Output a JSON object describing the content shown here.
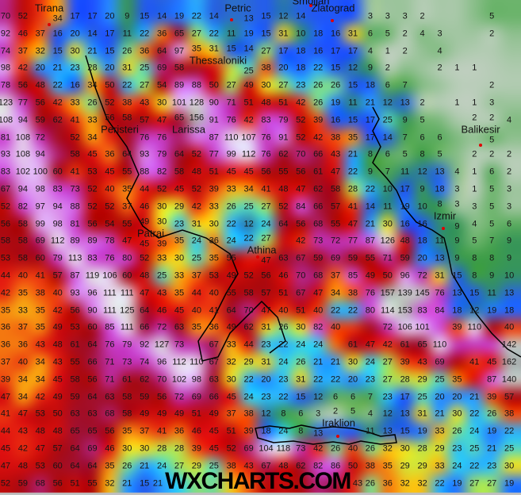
{
  "map": {
    "watermark": "WXCHARTS.COM",
    "cities": [
      {
        "name": "Tirana",
        "has_marker": true
      },
      {
        "name": "Petric",
        "has_marker": true
      },
      {
        "name": "Smoljan",
        "has_marker": true
      },
      {
        "name": "Zlatograd",
        "has_marker": true
      },
      {
        "name": "Thessaloniki",
        "has_marker": false
      },
      {
        "name": "Peristeri",
        "has_marker": false
      },
      {
        "name": "Larissa",
        "has_marker": false
      },
      {
        "name": "Patrai",
        "has_marker": false
      },
      {
        "name": "Athina",
        "has_marker": true
      },
      {
        "name": "Izmir",
        "has_marker": true
      },
      {
        "name": "Balikesir",
        "has_marker": true
      },
      {
        "name": "Iraklion",
        "has_marker": true
      }
    ],
    "color_scale": [
      {
        "v": 0,
        "c": "#c8cfc8"
      },
      {
        "v": 2,
        "c": "#b4ccb4"
      },
      {
        "v": 5,
        "c": "#6cb46c"
      },
      {
        "v": 8,
        "c": "#3c9c48"
      },
      {
        "v": 11,
        "c": "#2f8a78"
      },
      {
        "v": 13,
        "c": "#2a68d8"
      },
      {
        "v": 17,
        "c": "#1e50ff"
      },
      {
        "v": 21,
        "c": "#2a9cff"
      },
      {
        "v": 24,
        "c": "#30d0f0"
      },
      {
        "v": 27,
        "c": "#a0e060"
      },
      {
        "v": 30,
        "c": "#f0e020"
      },
      {
        "v": 34,
        "c": "#f8a010"
      },
      {
        "v": 38,
        "c": "#f05010"
      },
      {
        "v": 45,
        "c": "#e01010"
      },
      {
        "v": 55,
        "c": "#b00808"
      },
      {
        "v": 65,
        "c": "#a01030"
      },
      {
        "v": 72,
        "c": "#c030b0"
      },
      {
        "v": 85,
        "c": "#d050e0"
      },
      {
        "v": 100,
        "c": "#e0b0f0"
      },
      {
        "v": 115,
        "c": "#e8e8e8"
      },
      {
        "v": 140,
        "c": "#c4c4c4"
      },
      {
        "v": 160,
        "c": "#a8a8a8"
      }
    ],
    "grid": {
      "rows": [
        [
          70,
          52,
          null,
          34,
          17,
          17,
          20,
          9,
          15,
          14,
          19,
          22,
          14,
          null,
          13,
          15,
          12,
          14,
          null,
          null,
          null,
          3,
          3,
          3,
          2,
          null,
          null,
          null,
          5,
          null
        ],
        [
          92,
          46,
          37,
          16,
          20,
          14,
          17,
          11,
          22,
          36,
          65,
          27,
          22,
          11,
          19,
          15,
          31,
          10,
          18,
          16,
          31,
          6,
          5,
          2,
          4,
          3,
          null,
          null,
          2,
          null
        ],
        [
          74,
          37,
          32,
          15,
          30,
          21,
          15,
          26,
          36,
          64,
          97,
          35,
          31,
          15,
          14,
          27,
          17,
          18,
          16,
          17,
          17,
          4,
          1,
          2,
          null,
          4,
          null,
          null,
          null,
          null
        ],
        [
          98,
          42,
          20,
          21,
          23,
          28,
          20,
          31,
          25,
          69,
          58,
          null,
          null,
          null,
          25,
          38,
          20,
          18,
          22,
          15,
          12,
          9,
          2,
          null,
          null,
          2,
          1,
          1,
          null,
          null
        ],
        [
          78,
          56,
          48,
          22,
          16,
          34,
          50,
          22,
          27,
          54,
          89,
          88,
          50,
          27,
          49,
          30,
          27,
          23,
          26,
          26,
          15,
          18,
          6,
          7,
          null,
          null,
          null,
          null,
          2,
          null
        ],
        [
          123,
          77,
          56,
          42,
          33,
          26,
          52,
          38,
          43,
          30,
          101,
          128,
          90,
          71,
          51,
          48,
          51,
          42,
          26,
          19,
          11,
          21,
          12,
          13,
          2,
          null,
          1,
          1,
          3,
          null
        ],
        [
          108,
          94,
          59,
          62,
          41,
          33,
          56,
          58,
          57,
          47,
          65,
          156,
          91,
          76,
          42,
          83,
          79,
          52,
          39,
          16,
          15,
          17,
          25,
          9,
          5,
          null,
          null,
          2,
          2,
          4
        ],
        [
          81,
          108,
          72,
          null,
          52,
          34,
          null,
          null,
          76,
          76,
          null,
          null,
          87,
          110,
          107,
          76,
          91,
          52,
          42,
          38,
          35,
          17,
          14,
          7,
          6,
          6,
          null,
          null,
          5,
          null
        ],
        [
          93,
          108,
          94,
          null,
          58,
          45,
          36,
          64,
          93,
          79,
          64,
          52,
          77,
          99,
          112,
          76,
          62,
          70,
          66,
          43,
          21,
          8,
          6,
          5,
          8,
          5,
          null,
          2,
          2,
          2
        ],
        [
          83,
          102,
          100,
          60,
          41,
          53,
          45,
          55,
          88,
          82,
          58,
          48,
          51,
          45,
          45,
          56,
          55,
          56,
          61,
          47,
          22,
          9,
          7,
          11,
          12,
          13,
          4,
          1,
          6,
          2
        ],
        [
          67,
          94,
          98,
          83,
          73,
          52,
          40,
          35,
          44,
          52,
          45,
          52,
          39,
          33,
          34,
          41,
          48,
          47,
          62,
          58,
          28,
          22,
          10,
          17,
          9,
          18,
          3,
          1,
          5,
          3
        ],
        [
          52,
          82,
          97,
          94,
          88,
          52,
          52,
          37,
          46,
          30,
          29,
          42,
          33,
          26,
          25,
          27,
          52,
          84,
          66,
          57,
          41,
          14,
          11,
          19,
          10,
          8,
          3,
          3,
          5,
          3
        ],
        [
          56,
          58,
          99,
          98,
          81,
          56,
          54,
          55,
          49,
          30,
          23,
          31,
          30,
          22,
          12,
          24,
          64,
          56,
          68,
          55,
          47,
          21,
          30,
          16,
          16,
          null,
          9,
          4,
          5,
          6
        ],
        [
          58,
          58,
          69,
          112,
          89,
          89,
          78,
          47,
          45,
          39,
          35,
          24,
          36,
          24,
          22,
          27,
          null,
          42,
          73,
          72,
          77,
          87,
          126,
          48,
          18,
          11,
          9,
          5,
          7,
          9
        ],
        [
          53,
          58,
          60,
          79,
          113,
          83,
          76,
          80,
          52,
          33,
          30,
          25,
          35,
          55,
          null,
          47,
          63,
          67,
          59,
          69,
          59,
          55,
          71,
          59,
          20,
          13,
          9,
          8,
          8,
          9
        ],
        [
          44,
          40,
          41,
          57,
          87,
          119,
          106,
          60,
          48,
          25,
          33,
          37,
          53,
          49,
          52,
          56,
          46,
          70,
          68,
          37,
          85,
          49,
          50,
          96,
          72,
          31,
          15,
          8,
          9,
          10
        ],
        [
          42,
          35,
          38,
          40,
          93,
          96,
          111,
          111,
          47,
          43,
          35,
          44,
          40,
          55,
          58,
          57,
          51,
          67,
          47,
          34,
          38,
          76,
          157,
          139,
          145,
          76,
          13,
          15,
          11,
          13
        ],
        [
          35,
          33,
          35,
          42,
          56,
          90,
          111,
          125,
          64,
          46,
          45,
          40,
          41,
          64,
          70,
          47,
          40,
          51,
          40,
          22,
          22,
          80,
          114,
          153,
          83,
          84,
          18,
          12,
          19,
          18
        ],
        [
          36,
          37,
          35,
          49,
          53,
          60,
          85,
          111,
          66,
          72,
          63,
          35,
          36,
          49,
          62,
          31,
          26,
          30,
          82,
          40,
          null,
          null,
          72,
          106,
          101,
          null,
          39,
          110,
          null,
          40
        ],
        [
          36,
          36,
          43,
          48,
          61,
          64,
          76,
          79,
          92,
          127,
          73,
          null,
          67,
          33,
          44,
          23,
          22,
          24,
          24,
          null,
          61,
          47,
          42,
          61,
          65,
          110,
          null,
          null,
          null,
          142
        ],
        [
          37,
          40,
          34,
          43,
          55,
          66,
          71,
          73,
          74,
          96,
          112,
          110,
          67,
          32,
          29,
          31,
          24,
          26,
          21,
          21,
          30,
          24,
          27,
          39,
          43,
          69,
          null,
          41,
          45,
          162
        ],
        [
          39,
          34,
          34,
          45,
          58,
          56,
          71,
          61,
          62,
          70,
          102,
          98,
          63,
          30,
          22,
          20,
          23,
          31,
          22,
          22,
          20,
          23,
          27,
          28,
          29,
          25,
          35,
          null,
          87,
          140
        ],
        [
          47,
          34,
          42,
          49,
          59,
          64,
          63,
          58,
          59,
          56,
          72,
          69,
          66,
          45,
          24,
          23,
          22,
          15,
          12,
          6,
          6,
          7,
          23,
          17,
          25,
          20,
          20,
          21,
          39,
          57
        ],
        [
          41,
          47,
          53,
          50,
          63,
          63,
          68,
          58,
          49,
          49,
          49,
          51,
          49,
          37,
          38,
          12,
          8,
          6,
          3,
          2,
          5,
          4,
          12,
          13,
          31,
          21,
          30,
          22,
          26,
          38
        ],
        [
          44,
          43,
          48,
          48,
          65,
          65,
          56,
          35,
          37,
          41,
          36,
          46,
          45,
          51,
          39,
          18,
          24,
          8,
          13,
          null,
          null,
          11,
          13,
          15,
          19,
          33,
          26,
          24,
          19,
          22
        ],
        [
          45,
          42,
          47,
          57,
          64,
          69,
          46,
          30,
          30,
          28,
          28,
          39,
          45,
          52,
          69,
          104,
          118,
          73,
          42,
          26,
          40,
          26,
          32,
          30,
          28,
          29,
          23,
          25,
          21,
          25
        ],
        [
          47,
          48,
          53,
          60,
          64,
          64,
          35,
          26,
          21,
          24,
          27,
          29,
          25,
          38,
          43,
          67,
          48,
          62,
          82,
          86,
          50,
          38,
          35,
          29,
          29,
          33,
          24,
          22,
          23,
          30
        ],
        [
          52,
          59,
          68,
          56,
          51,
          55,
          32,
          21,
          15,
          21,
          null,
          null,
          null,
          null,
          null,
          null,
          null,
          null,
          null,
          null,
          43,
          26,
          36,
          32,
          32,
          22,
          19,
          27,
          27,
          19
        ]
      ]
    }
  }
}
